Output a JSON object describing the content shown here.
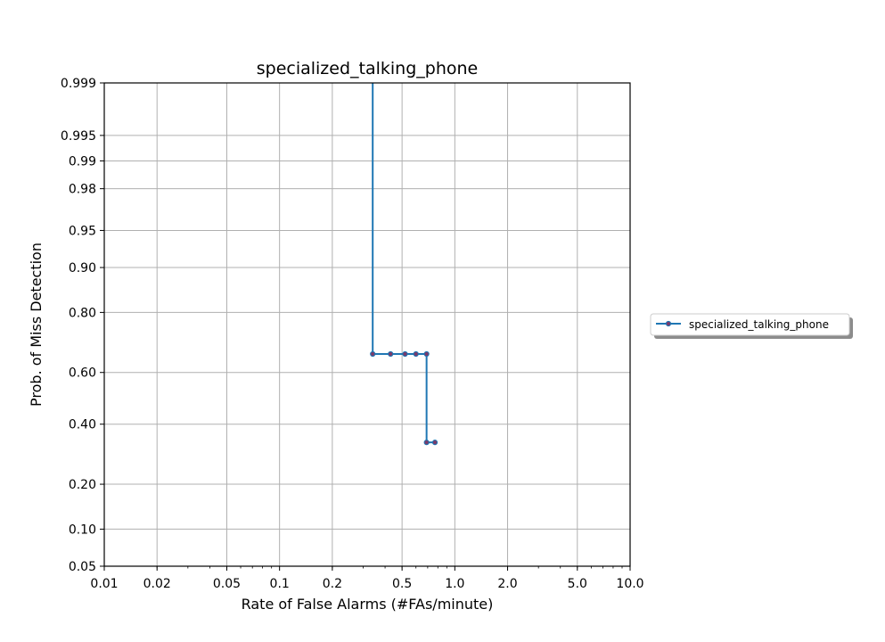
{
  "chart_data": {
    "type": "line",
    "title": "specialized_talking_phone",
    "xlabel": "Rate of False Alarms (#FAs/minute)",
    "ylabel": "Prob. of Miss Detection",
    "x_scale": "log",
    "y_scale": "normal-deviate",
    "xlim": [
      0.01,
      10.0
    ],
    "ylim": [
      0.05,
      0.999
    ],
    "x_ticks": [
      0.01,
      0.02,
      0.05,
      0.1,
      0.2,
      0.5,
      1.0,
      2.0,
      5.0,
      10.0
    ],
    "x_tick_labels": [
      "0.01",
      "0.02",
      "0.05",
      "0.1",
      "0.2",
      "0.5",
      "1.0",
      "2.0",
      "5.0",
      "10.0"
    ],
    "y_ticks": [
      0.05,
      0.1,
      0.2,
      0.4,
      0.6,
      0.8,
      0.9,
      0.95,
      0.98,
      0.99,
      0.995,
      0.999
    ],
    "y_tick_labels": [
      "0.05",
      "0.10",
      "0.20",
      "0.40",
      "0.60",
      "0.80",
      "0.90",
      "0.95",
      "0.98",
      "0.99",
      "0.995",
      "0.999"
    ],
    "grid": true,
    "legend_position": "right-outside",
    "series": [
      {
        "name": "specialized_talking_phone",
        "color": "#1f77b4",
        "marker_color": "#7a3b6b",
        "x": [
          0.34,
          0.34,
          0.43,
          0.52,
          0.6,
          0.69,
          0.69,
          0.77
        ],
        "y": [
          0.999,
          0.668,
          0.668,
          0.668,
          0.668,
          0.668,
          0.333,
          0.333
        ],
        "markers": [
          false,
          true,
          true,
          true,
          true,
          true,
          true,
          true
        ]
      }
    ]
  }
}
